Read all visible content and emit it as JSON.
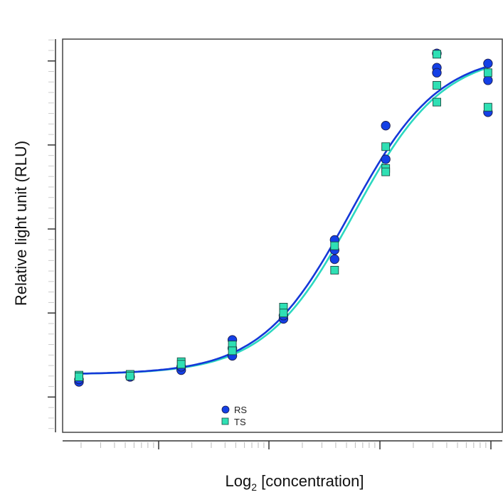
{
  "chart_data": {
    "type": "scatter",
    "title": "",
    "xlabel": {
      "main": "Log",
      "sub": "2",
      "rest": " [concentration]"
    },
    "ylabel": "Relative light unit (RLU)",
    "xlim": [
      0.68,
      9.28
    ],
    "ylim": [
      -0.42,
      4.26
    ],
    "grid": false,
    "legend_position": "bottom-left",
    "tick_labels_shown": false,
    "series": [
      {
        "name": "RS",
        "marker": "circle",
        "color": "#1440e6",
        "curve_color": "#1438d8",
        "fit": {
          "bottom": 0.27,
          "top": 4.1,
          "mid": 6.3,
          "slope": 1.15
        },
        "points": [
          [
            1,
            0.18
          ],
          [
            1,
            0.21
          ],
          [
            2,
            0.24
          ],
          [
            3,
            0.32
          ],
          [
            3,
            0.36
          ],
          [
            4,
            0.68
          ],
          [
            4,
            0.49
          ],
          [
            4,
            0.58
          ],
          [
            5,
            0.93
          ],
          [
            5,
            0.97
          ],
          [
            6,
            1.75
          ],
          [
            6,
            1.64
          ],
          [
            6,
            1.87
          ],
          [
            7,
            3.23
          ],
          [
            7,
            2.83
          ],
          [
            8,
            4.09
          ],
          [
            8,
            3.92
          ],
          [
            8,
            3.86
          ],
          [
            9,
            3.97
          ],
          [
            9,
            3.77
          ],
          [
            9,
            3.39
          ]
        ]
      },
      {
        "name": "TS",
        "marker": "square",
        "color": "#2fe0b4",
        "curve_color": "#2bd8c0",
        "fit": {
          "bottom": 0.27,
          "top": 4.1,
          "mid": 6.38,
          "slope": 1.15
        },
        "points": [
          [
            1,
            0.26
          ],
          [
            1,
            0.24
          ],
          [
            2,
            0.27
          ],
          [
            2,
            0.25
          ],
          [
            3,
            0.42
          ],
          [
            3,
            0.39
          ],
          [
            4,
            0.62
          ],
          [
            4,
            0.55
          ],
          [
            5,
            1.07
          ],
          [
            5,
            1.0
          ],
          [
            6,
            1.8
          ],
          [
            6,
            1.51
          ],
          [
            7,
            2.98
          ],
          [
            7,
            2.72
          ],
          [
            7,
            2.68
          ],
          [
            8,
            4.08
          ],
          [
            8,
            3.71
          ],
          [
            8,
            3.51
          ],
          [
            9,
            3.86
          ],
          [
            9,
            3.45
          ]
        ]
      }
    ]
  }
}
